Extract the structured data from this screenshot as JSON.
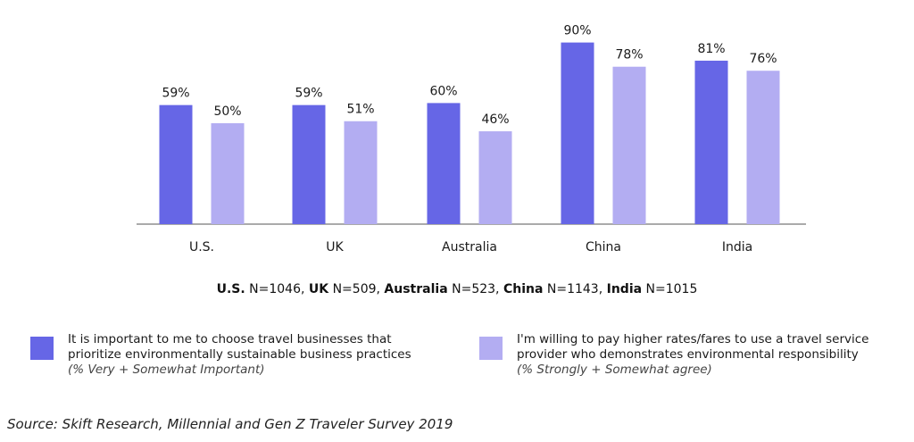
{
  "chart_data": {
    "type": "bar",
    "categories": [
      "U.S.",
      "UK",
      "Australia",
      "China",
      "India"
    ],
    "series": [
      {
        "values": [
          59,
          59,
          60,
          90,
          81
        ],
        "labels": [
          "59%",
          "59%",
          "60%",
          "90%",
          "81%"
        ],
        "color": "#6666E6"
      },
      {
        "values": [
          50,
          51,
          46,
          78,
          76
        ],
        "labels": [
          "50%",
          "51%",
          "46%",
          "78%",
          "76%"
        ],
        "color": "#B3ADF2"
      }
    ],
    "ylim": [
      0,
      100
    ],
    "grid": false,
    "legend_position": "bottom"
  },
  "sample_sizes": [
    {
      "country": "U.S.",
      "n": "N=1046",
      "sep": ", "
    },
    {
      "country": "UK",
      "n": "N=509",
      "sep": ", "
    },
    {
      "country": "Australia",
      "n": "N=523",
      "sep": ", "
    },
    {
      "country": "China",
      "n": "N=1143",
      "sep": ", "
    },
    {
      "country": "India",
      "n": "N=1015",
      "sep": ""
    }
  ],
  "legend": [
    {
      "line1": "It is important to me to choose travel businesses that",
      "line2": "prioritize environmentally sustainable business practices",
      "note": "(% Very + Somewhat Important)",
      "color": "#6666E6"
    },
    {
      "line1": "I'm willing to pay higher rates/fares to use a travel service",
      "line2": "provider who demonstrates environmental responsibility",
      "note": "(% Strongly + Somewhat agree)",
      "color": "#B3ADF2"
    }
  ],
  "source": "Source: Skift Research, Millennial and Gen Z Traveler Survey 2019"
}
